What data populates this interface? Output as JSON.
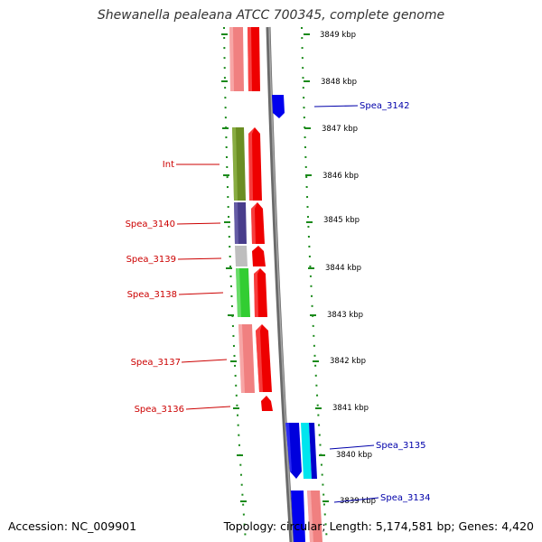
{
  "title": "Shewanella pealeana ATCC 700345, complete genome",
  "accession": "Accession: NC_009901",
  "summary": "Topology: circular; Length: 5,174,581 bp; Genes: 4,420",
  "colors": {
    "ruler": "#1a8a1a",
    "backbone": "#808080",
    "label_red": "#cc0000",
    "label_blue": "#0000aa"
  },
  "ruler_ticks": [
    "3849 kbp",
    "3848 kbp",
    "3847 kbp",
    "3846 kbp",
    "3845 kbp",
    "3844 kbp",
    "3843 kbp",
    "3842 kbp",
    "3841 kbp",
    "3840 kbp",
    "3839 kbp"
  ],
  "left_labels": [
    "Int",
    "Spea_3140",
    "Spea_3139",
    "Spea_3138",
    "Spea_3137",
    "Spea_3136"
  ],
  "right_labels": [
    "Spea_3142",
    "Spea_3135",
    "Spea_3134"
  ]
}
